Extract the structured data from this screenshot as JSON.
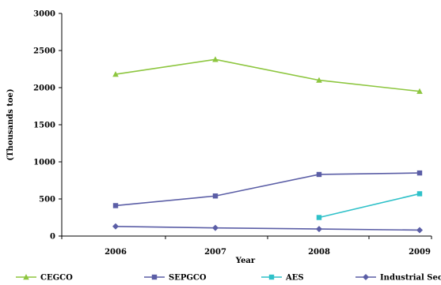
{
  "chart_data": {
    "type": "line",
    "xlabel": "Year",
    "ylabel": "(Thousands toe)",
    "categories": [
      "2006",
      "2007",
      "2008",
      "2009"
    ],
    "ylim": [
      0,
      3000
    ],
    "yticks": [
      "0",
      "500",
      "1000",
      "1500",
      "2000",
      "2500",
      "3000"
    ],
    "grid": false,
    "legend_position": "bottom",
    "series": [
      {
        "name": "CEGCO",
        "color": "#8dc63f",
        "marker": "triangle",
        "values": [
          2180,
          2380,
          2100,
          1950
        ]
      },
      {
        "name": "SEPGCO",
        "color": "#5b5ea6",
        "marker": "square",
        "values": [
          410,
          540,
          830,
          850
        ]
      },
      {
        "name": "AES",
        "color": "#2fc1c9",
        "marker": "square",
        "values": [
          null,
          null,
          250,
          570
        ]
      },
      {
        "name": "Industrial Sector",
        "color": "#5b5ea6",
        "marker": "diamond",
        "values": [
          130,
          110,
          95,
          80
        ]
      }
    ]
  }
}
